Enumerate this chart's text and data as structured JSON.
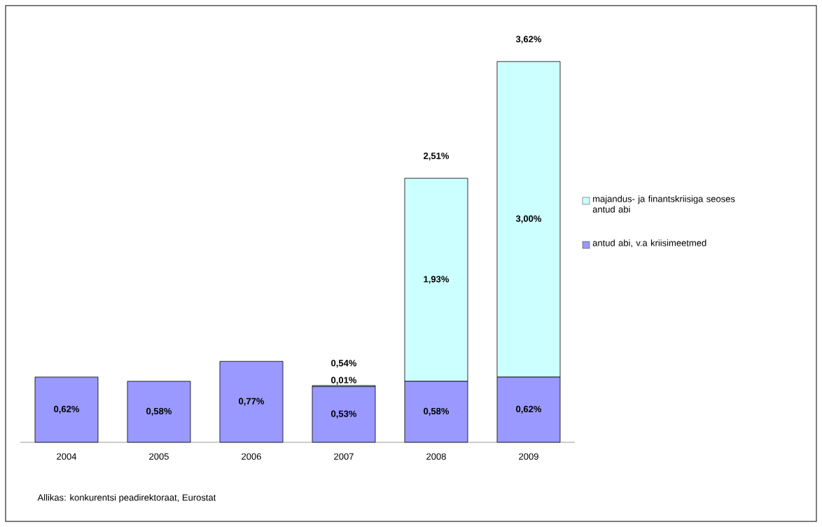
{
  "chart_data": {
    "type": "bar",
    "stacked": true,
    "categories": [
      "2004",
      "2005",
      "2006",
      "2007",
      "2008",
      "2009"
    ],
    "series": [
      {
        "name": "antud abi, v.a kriisimeetmed",
        "color": "#9999ff",
        "values": [
          0.62,
          0.58,
          0.77,
          0.53,
          0.58,
          0.62
        ],
        "value_labels": [
          "0,62%",
          "0,58%",
          "0,77%",
          "0,53%",
          "0,58%",
          "0,62%"
        ]
      },
      {
        "name": "majandus- ja finantskriisiga seoses antud abi",
        "color": "#ccffff",
        "values": [
          null,
          null,
          null,
          0.01,
          1.93,
          3.0
        ],
        "value_labels": [
          null,
          null,
          null,
          "0,01%",
          "1,93%",
          "3,00%"
        ]
      }
    ],
    "totals": [
      null,
      null,
      null,
      "0,54%",
      "2,51%",
      "3,62%"
    ],
    "legend": "right",
    "annotations": [
      "Allikas: konkurentsi peadirektoraat, Eurostat"
    ]
  }
}
